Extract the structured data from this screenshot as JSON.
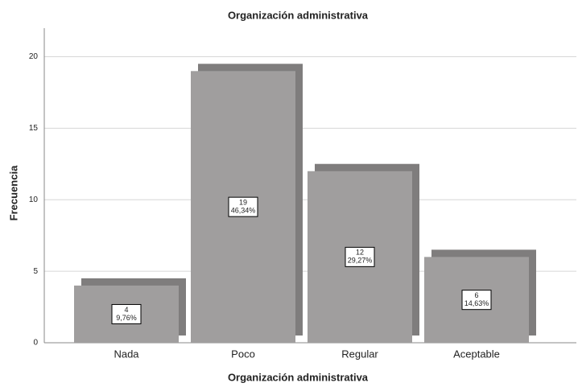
{
  "chart_data": {
    "type": "bar",
    "title": "Organización administrativa",
    "x_label": "Organización administrativa",
    "y_label": "Frecuencia",
    "categories": [
      "Nada",
      "Poco",
      "Regular",
      "Aceptable"
    ],
    "values": [
      4,
      19,
      12,
      6
    ],
    "percentages": [
      9.76,
      46.34,
      29.27,
      14.63
    ],
    "percentage_labels": [
      "9,76%",
      "46,34%",
      "29,27%",
      "14,63%"
    ],
    "color": "#a09e9e",
    "shadow_color": "#7f7d7d",
    "ylim": [
      0,
      22
    ],
    "yticks": [
      0,
      5,
      10,
      15,
      20
    ],
    "grid": true
  }
}
